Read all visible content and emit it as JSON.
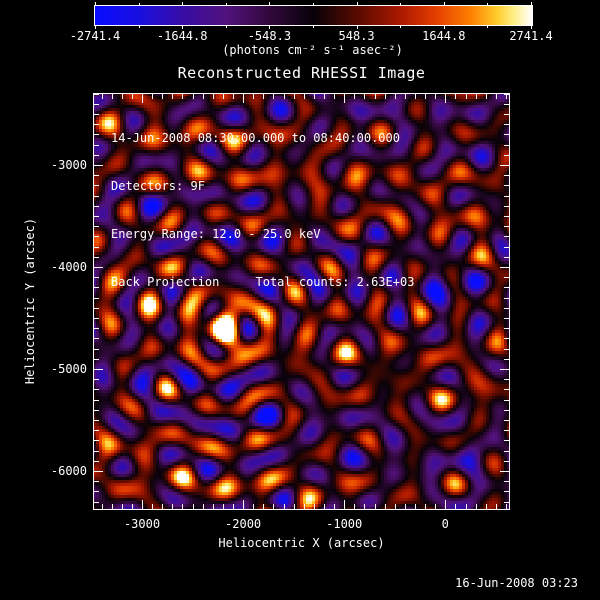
{
  "header": {
    "title": "Reconstructed RHESSI Image",
    "colorbar": {
      "tick_labels": [
        "-2741.4",
        "-1644.8",
        "-548.3",
        "548.3",
        "1644.8",
        "2741.4"
      ],
      "units": "(photons cm⁻² s⁻¹ asec⁻²)"
    }
  },
  "annotations": {
    "lines": [
      "14-Jun-2008 08:30:00.000 to 08:40:00.000",
      "Detectors: 9F",
      "Energy Range: 12.0 - 25.0 keV",
      "Back Projection     Total counts: 2.63E+03"
    ]
  },
  "footer": {
    "timestamp": "16-Jun-2008 03:23"
  },
  "chart_data": {
    "type": "heatmap",
    "title": "Reconstructed RHESSI Image",
    "xlabel": "Heliocentric X (arcsec)",
    "ylabel": "Heliocentric Y (arcsec)",
    "x_range": [
      -3485,
      640
    ],
    "y_range": [
      -6383,
      -2293
    ],
    "x_major_ticks": [
      -3000,
      -2000,
      -1000,
      0
    ],
    "y_major_ticks": [
      -6000,
      -5000,
      -4000,
      -3000
    ],
    "minor_tick_step_arcsec": 100,
    "grid": false,
    "colorbar": {
      "min": -2741.4,
      "max": 2741.4,
      "tick_values": [
        -2741.4,
        -1644.8,
        -548.3,
        548.3,
        1644.8,
        2741.4
      ],
      "units": "(photons cm⁻² s⁻¹ asec⁻²)"
    },
    "peak_source": {
      "x_arcsec": -2180,
      "y_arcsec": -4618
    },
    "total_counts": "2.63E+03",
    "colormap_stops": [
      [
        0.0,
        [
          8,
          12,
          255
        ]
      ],
      [
        0.1,
        [
          25,
          15,
          225
        ]
      ],
      [
        0.2,
        [
          55,
          12,
          165
        ]
      ],
      [
        0.3,
        [
          82,
          18,
          125
        ]
      ],
      [
        0.4,
        [
          48,
          8,
          58
        ]
      ],
      [
        0.5,
        [
          8,
          2,
          8
        ]
      ],
      [
        0.6,
        [
          88,
          10,
          0
        ]
      ],
      [
        0.7,
        [
          172,
          25,
          0
        ]
      ],
      [
        0.78,
        [
          228,
          62,
          0
        ]
      ],
      [
        0.86,
        [
          255,
          128,
          0
        ]
      ],
      [
        0.92,
        [
          255,
          205,
          45
        ]
      ],
      [
        0.96,
        [
          255,
          240,
          140
        ]
      ],
      [
        1.0,
        [
          255,
          255,
          255
        ]
      ]
    ],
    "synthesis": {
      "core": {
        "amp": 3300,
        "sigma_arcsec": 136
      },
      "rings": {
        "amp": 1150,
        "wavelength_arcsec": 386,
        "decay_arcsec": 2400
      },
      "dips": [
        {
          "x": 25,
          "y": -4160,
          "amp": -800,
          "sigma": 140
        },
        {
          "x": 224,
          "y": -5730,
          "amp": -750,
          "sigma": 130
        }
      ],
      "fringes": [
        {
          "angle_deg": 12,
          "wavelength": 372,
          "phase": 0.8,
          "amp": 470
        },
        {
          "angle_deg": 40,
          "wavelength": 410,
          "phase": 2.4,
          "amp": 430
        },
        {
          "angle_deg": 65,
          "wavelength": 352,
          "phase": 4.2,
          "amp": 480
        },
        {
          "angle_deg": 90,
          "wavelength": 432,
          "phase": 1.3,
          "amp": 410
        },
        {
          "angle_deg": 113,
          "wavelength": 388,
          "phase": 3.6,
          "amp": 450
        },
        {
          "angle_deg": 138,
          "wavelength": 360,
          "phase": 5.3,
          "amp": 430
        },
        {
          "angle_deg": 163,
          "wavelength": 418,
          "phase": 2.1,
          "amp": 420
        },
        {
          "angle_deg": 75,
          "wavelength": 1600,
          "phase": 0.5,
          "amp": 300
        }
      ]
    }
  }
}
